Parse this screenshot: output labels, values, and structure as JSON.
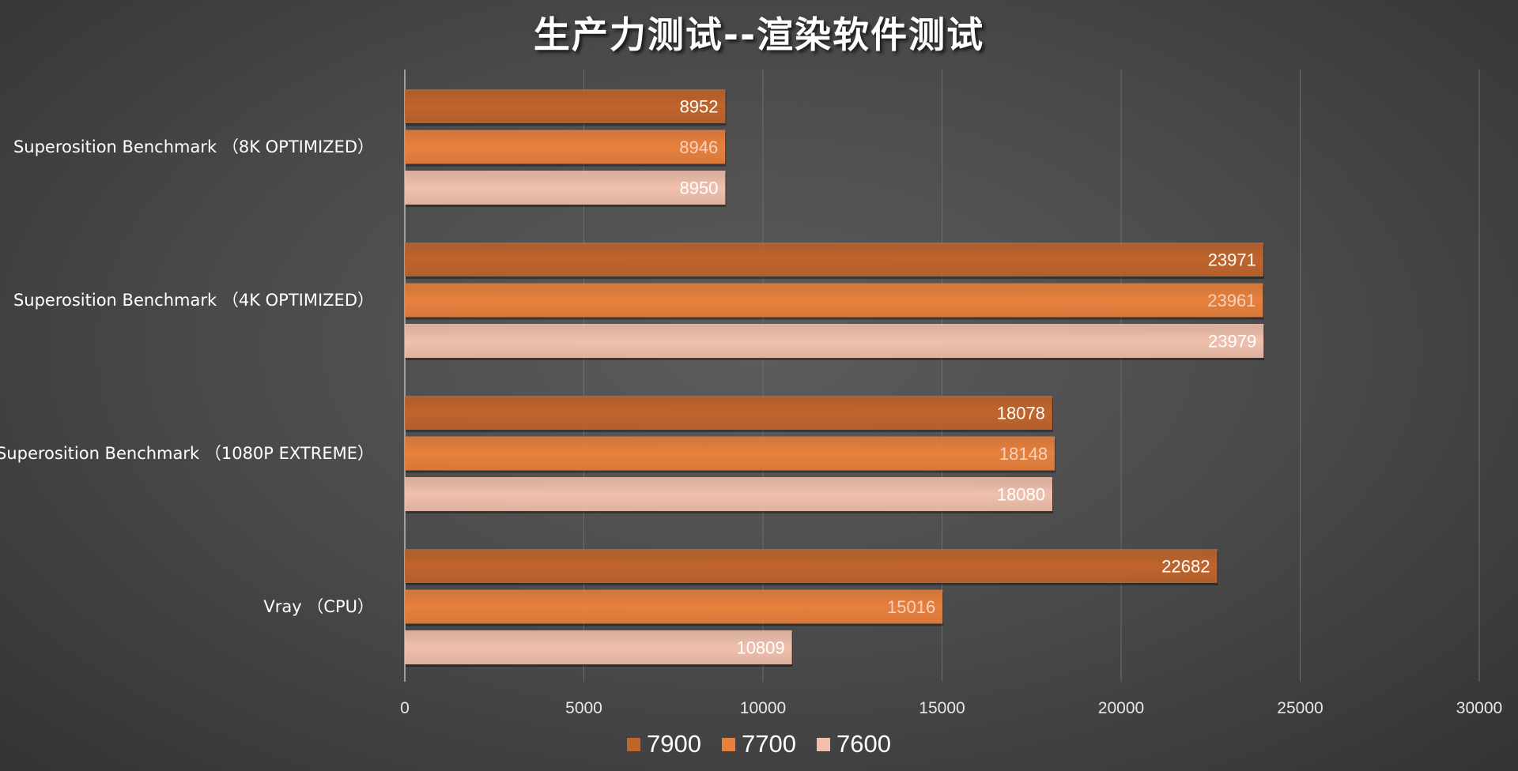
{
  "chart_data": {
    "type": "bar",
    "orientation": "horizontal",
    "title": "生产力测试--渲染软件测试",
    "categories": [
      "Superosition Benchmark （8K OPTIMIZED）",
      "Superosition Benchmark （4K OPTIMIZED）",
      "Superosition Benchmark （1080P EXTREME）",
      "Vray （CPU）"
    ],
    "series": [
      {
        "name": "7900",
        "color": "#c0642c",
        "values": [
          8952,
          23971,
          18078,
          22682
        ]
      },
      {
        "name": "7700",
        "color": "#e8803c",
        "values": [
          8946,
          23961,
          18148,
          15016
        ]
      },
      {
        "name": "7600",
        "color": "#f0c0ac",
        "values": [
          8950,
          23979,
          18080,
          10809
        ]
      }
    ],
    "xlim": [
      0,
      30000
    ],
    "xticks": [
      "0",
      "5000",
      "10000",
      "15000",
      "20000",
      "25000",
      "30000"
    ],
    "grid": true,
    "legend": "bottom",
    "data_labels": true
  }
}
